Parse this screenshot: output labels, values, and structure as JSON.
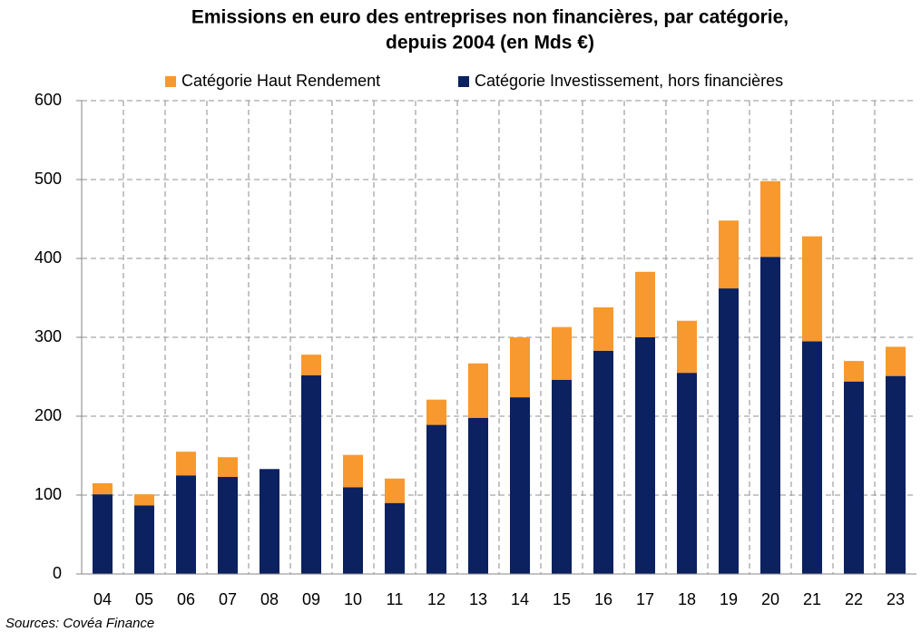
{
  "chart_data": {
    "type": "stacked_bar",
    "title": [
      "Emissions en euro des entreprises non financières, par catégorie,",
      "depuis 2004 (en Mds €)"
    ],
    "categories": [
      "04",
      "05",
      "06",
      "07",
      "08",
      "09",
      "10",
      "11",
      "12",
      "13",
      "14",
      "15",
      "16",
      "17",
      "18",
      "19",
      "20",
      "21",
      "22",
      "23"
    ],
    "series": [
      {
        "name": "Catégorie Investissement, hors financières",
        "color": "#0b2160",
        "values": [
          101,
          87,
          125,
          123,
          133,
          252,
          110,
          90,
          189,
          198,
          224,
          246,
          283,
          300,
          255,
          362,
          402,
          295,
          244,
          251
        ]
      },
      {
        "name": "Catégorie Haut Rendement",
        "color": "#f7992f",
        "values": [
          14,
          14,
          30,
          25,
          0,
          26,
          41,
          31,
          32,
          69,
          76,
          67,
          55,
          83,
          66,
          86,
          96,
          133,
          26,
          37
        ]
      }
    ],
    "ylim": [
      0,
      600
    ],
    "yticks": [
      0,
      100,
      200,
      300,
      400,
      500,
      600
    ],
    "grid": true,
    "source": "Sources: Covéa Finance"
  }
}
